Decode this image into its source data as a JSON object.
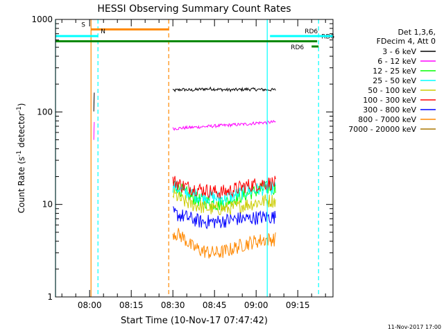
{
  "chart_data": {
    "type": "line",
    "title": "HESSI Observing Summary Count Rates",
    "xlabel": "Start Time (10-Nov-17 07:47:42)",
    "ylabel": "Count Rate (s",
    "ylabel_sup1": "-1",
    "ylabel_mid": " detector",
    "ylabel_sup2": "-1",
    "ylabel_end": ")",
    "y_scale": "log",
    "ylim": [
      1,
      1000
    ],
    "xlim": [
      "07:47:42",
      "09:27:42"
    ],
    "xticks": [
      "08:00",
      "08:15",
      "08:30",
      "08:45",
      "09:00",
      "09:15"
    ],
    "yticks": [
      "1",
      "10",
      "100",
      "1000"
    ],
    "grid": false,
    "legend_header": [
      "Det 1,3,6,",
      "FDecim 4, Att 0"
    ],
    "series": [
      {
        "name": "3 - 6 keV",
        "color": "#000000",
        "segments": [
          {
            "start": "08:01:30",
            "end": "08:01:40",
            "values": [
              100,
              160
            ]
          },
          {
            "start": "08:30:00",
            "end": "09:07:00",
            "values": [
              170,
              175,
              172,
              176,
              178,
              175,
              173,
              174,
              176,
              175,
              174,
              173
            ]
          }
        ]
      },
      {
        "name": "6 - 12 keV",
        "color": "#ff00ff",
        "segments": [
          {
            "start": "08:01:30",
            "end": "08:01:40",
            "values": [
              50,
              80
            ]
          },
          {
            "start": "08:30:00",
            "end": "09:07:00",
            "values": [
              66,
              67,
              68,
              69,
              70,
              71,
              72,
              73,
              74,
              76,
              77,
              78
            ]
          }
        ]
      },
      {
        "name": "12 - 25 keV",
        "color": "#00ff00",
        "segments": [
          {
            "start": "08:30:00",
            "end": "09:07:00",
            "values": [
              17,
              14,
              12,
              11,
              10.5,
              10,
              11,
              12,
              13,
              14,
              15,
              15
            ]
          }
        ]
      },
      {
        "name": "25 - 50 keV",
        "color": "#00ffff",
        "segments": [
          {
            "start": "08:30:00",
            "end": "09:07:00",
            "values": [
              16,
              14,
              13,
              12,
              12,
              11.5,
              12,
              13,
              14,
              14.5,
              15,
              15
            ]
          }
        ]
      },
      {
        "name": "50 - 100 keV",
        "color": "#cccc00",
        "segments": [
          {
            "start": "08:30:00",
            "end": "09:07:00",
            "values": [
              13,
              11,
              10,
              9.5,
              9,
              9,
              9,
              9.5,
              10,
              10.5,
              11,
              11
            ]
          }
        ]
      },
      {
        "name": "100 - 300 keV",
        "color": "#ff0000",
        "segments": [
          {
            "start": "08:30:00",
            "end": "09:07:00",
            "values": [
              18,
              16,
              15,
              14.5,
              14,
              13.5,
              14,
              15,
              16,
              16.5,
              17,
              17
            ]
          }
        ]
      },
      {
        "name": "300 - 800 keV",
        "color": "#0000ff",
        "segments": [
          {
            "start": "08:30:00",
            "end": "09:07:00",
            "values": [
              8,
              7.5,
              7,
              6.5,
              6.5,
              6.5,
              6.8,
              7,
              7,
              7.2,
              7.3,
              7.3
            ]
          }
        ]
      },
      {
        "name": "800 - 7000 keV",
        "color": "#ff8800",
        "segments": [
          {
            "start": "08:30:00",
            "end": "09:07:00",
            "values": [
              5,
              4.5,
              3.5,
              3.2,
              3,
              3,
              3.2,
              3.5,
              3.8,
              4,
              4.2,
              4.2
            ]
          }
        ]
      },
      {
        "name": "7000 - 20000 keV",
        "color": "#aa7700",
        "segments": []
      }
    ],
    "annotations": {
      "bars": [
        {
          "label": "S",
          "color": "#ff8800",
          "start": "08:00:30",
          "end": "08:28:30",
          "level": 780
        },
        {
          "label": "N",
          "color": "#00ffff",
          "start": "07:47:42",
          "end": "08:03:00",
          "level": 660
        },
        {
          "label": "RD6",
          "color": "#008800",
          "start": "07:47:42",
          "end": "09:22:00",
          "level": 580
        },
        {
          "label": "RD6",
          "color": "#008800",
          "start": "09:20:00",
          "end": "09:22:30",
          "level": 510
        },
        {
          "label": "RD6",
          "color": "#00ffff",
          "start": "09:05:00",
          "end": "09:27:42",
          "level": 660
        }
      ],
      "vlines": [
        {
          "time": "07:47:42",
          "color": "#00ffff",
          "style": "solid"
        },
        {
          "time": "08:00:30",
          "color": "#ff8800",
          "style": "solid"
        },
        {
          "time": "08:03:00",
          "color": "#00ffff",
          "style": "dashed"
        },
        {
          "time": "08:28:30",
          "color": "#ff8800",
          "style": "dashed"
        },
        {
          "time": "09:04:00",
          "color": "#00ffff",
          "style": "solid"
        },
        {
          "time": "09:22:30",
          "color": "#00ffff",
          "style": "dashed"
        }
      ]
    },
    "footer_date": "11-Nov-2017 17:00"
  }
}
